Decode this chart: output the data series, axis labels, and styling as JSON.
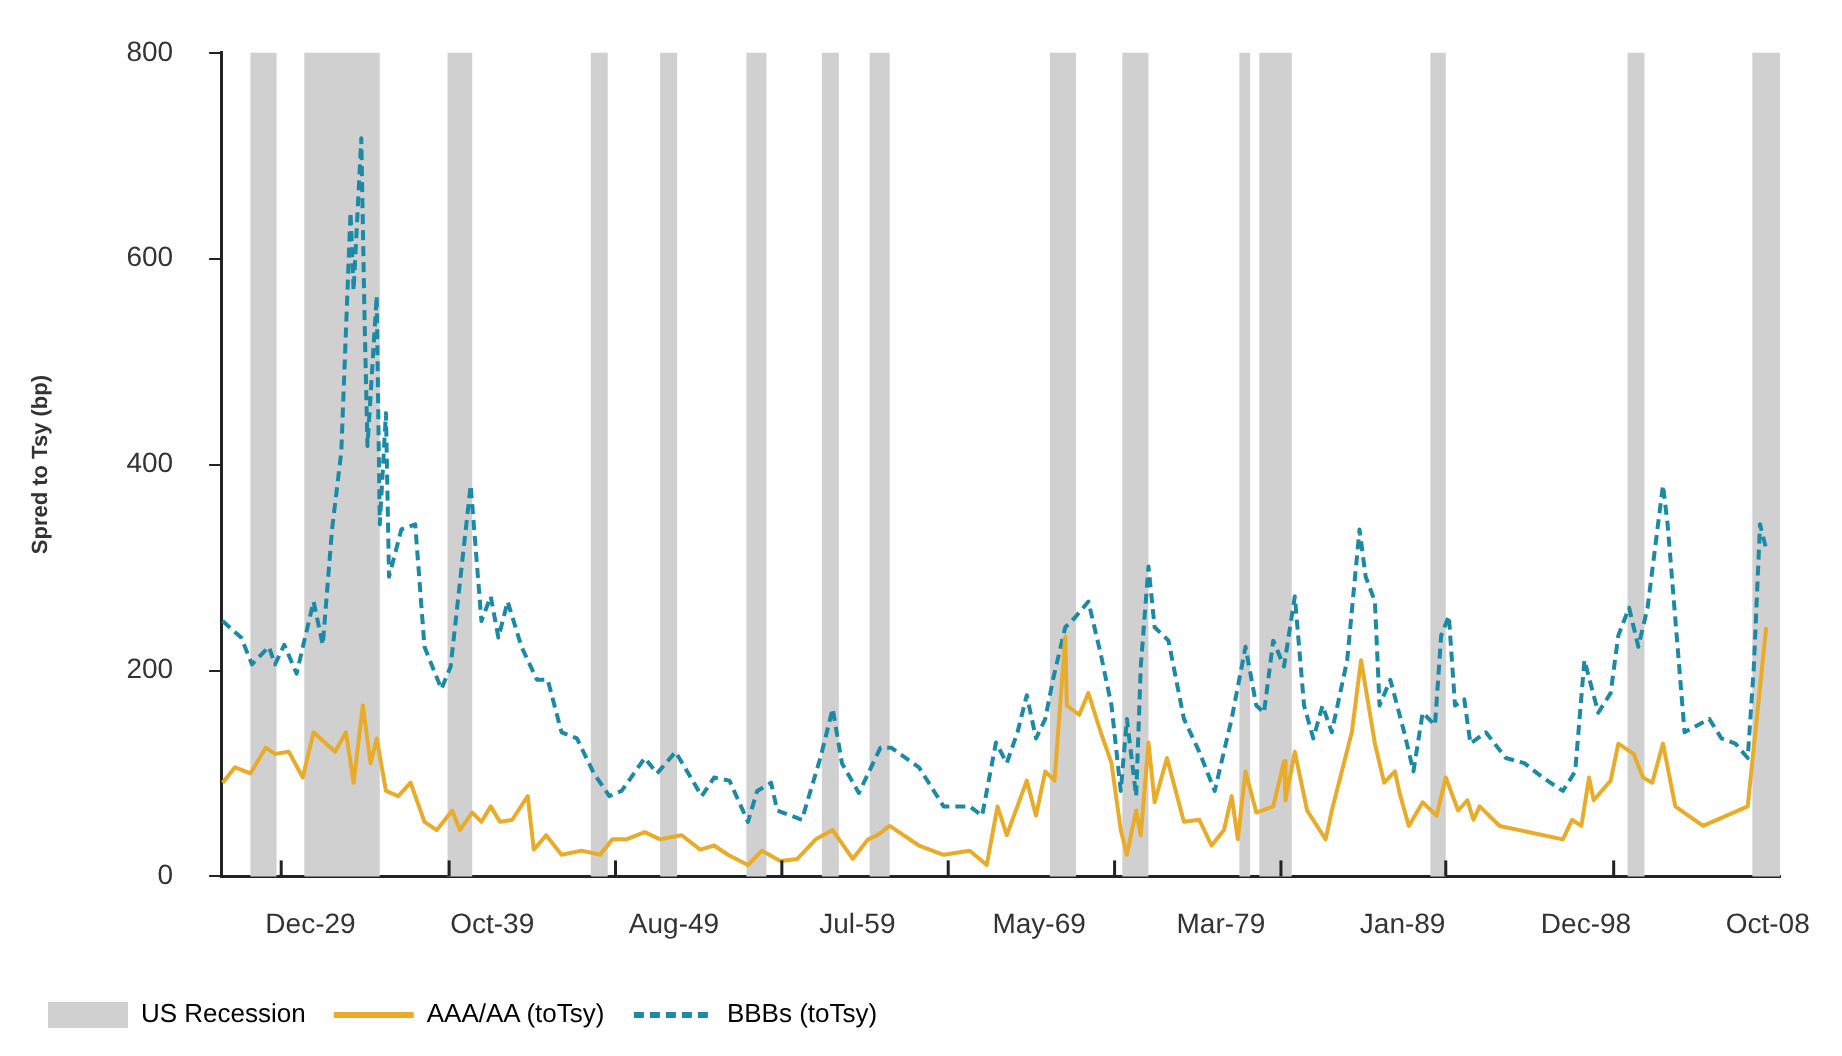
{
  "chart_data": {
    "type": "line",
    "ylabel": "Spred to Tsy (bp)",
    "xlim": [
      "1925-02",
      "2009-06"
    ],
    "ylim": [
      0,
      800
    ],
    "yticks": [
      0,
      200,
      400,
      600,
      800
    ],
    "xticks": [
      {
        "value": "1928-05",
        "label": null
      },
      {
        "value": "1929-12",
        "label": "Dec-29"
      },
      {
        "value": "1937-06",
        "label": null
      },
      {
        "value": "1939-10",
        "label": "Oct-39"
      },
      {
        "value": "1946-06",
        "label": null
      },
      {
        "value": "1949-08",
        "label": "Aug-49"
      },
      {
        "value": "1955-06",
        "label": null
      },
      {
        "value": "1959-07",
        "label": "Jul-59"
      },
      {
        "value": "1964-06",
        "label": null
      },
      {
        "value": "1969-05",
        "label": "May-69"
      },
      {
        "value": "1973-06",
        "label": null
      },
      {
        "value": "1979-03",
        "label": "Mar-79"
      },
      {
        "value": "1982-06",
        "label": null
      },
      {
        "value": "1989-01",
        "label": "Jan-89"
      },
      {
        "value": "1991-05",
        "label": null
      },
      {
        "value": "1998-12",
        "label": "Dec-98"
      },
      {
        "value": "2000-06",
        "label": null
      },
      {
        "value": "2008-10",
        "label": "Oct-08"
      }
    ],
    "grid": false,
    "legend": "bottom",
    "marker": "none",
    "bands": [
      {
        "axis": "x",
        "from": "1926-09",
        "to": "1928-02",
        "label": "US Recession",
        "color": "#d0d0d0"
      },
      {
        "axis": "x",
        "from": "1929-08",
        "to": "1933-09",
        "color": "#d0d0d0"
      },
      {
        "axis": "x",
        "from": "1937-05",
        "to": "1938-09",
        "color": "#d0d0d0"
      },
      {
        "axis": "x",
        "from": "1945-02",
        "to": "1946-01",
        "color": "#d0d0d0"
      },
      {
        "axis": "x",
        "from": "1948-11",
        "to": "1949-10",
        "color": "#d0d0d0"
      },
      {
        "axis": "x",
        "from": "1953-07",
        "to": "1954-08",
        "color": "#d0d0d0"
      },
      {
        "axis": "x",
        "from": "1957-08",
        "to": "1958-07",
        "color": "#d0d0d0"
      },
      {
        "axis": "x",
        "from": "1960-03",
        "to": "1961-04",
        "color": "#d0d0d0"
      },
      {
        "axis": "x",
        "from": "1969-12",
        "to": "1971-05",
        "color": "#d0d0d0"
      },
      {
        "axis": "x",
        "from": "1973-11",
        "to": "1975-04",
        "color": "#d0d0d0"
      },
      {
        "axis": "x",
        "from": "1980-03",
        "to": "1980-10",
        "color": "#d0d0d0"
      },
      {
        "axis": "x",
        "from": "1981-04",
        "to": "1983-01",
        "color": "#d0d0d0"
      },
      {
        "axis": "x",
        "from": "1990-07",
        "to": "1991-05",
        "color": "#d0d0d0"
      },
      {
        "axis": "x",
        "from": "2001-03",
        "to": "2002-02",
        "color": "#d0d0d0"
      },
      {
        "axis": "x",
        "from": "2007-12",
        "to": "2009-06",
        "color": "#d0d0d0"
      }
    ],
    "series": [
      {
        "name": "AAA/AA (toTsy)",
        "color": "#e8ac2a",
        "line_style": "solid",
        "x": [
          "1925-03",
          "1925-11",
          "1926-09",
          "1927-07",
          "1928-01",
          "1928-10",
          "1929-07",
          "1930-02",
          "1931-04",
          "1931-11",
          "1932-04",
          "1932-10",
          "1933-03",
          "1933-07",
          "1934-01",
          "1934-09",
          "1935-05",
          "1936-02",
          "1936-10",
          "1937-08",
          "1938-01",
          "1938-09",
          "1939-03",
          "1939-09",
          "1940-03",
          "1940-11",
          "1941-09",
          "1942-01",
          "1942-09",
          "1943-07",
          "1944-08",
          "1945-08",
          "1946-04",
          "1947-01",
          "1948-01",
          "1948-11",
          "1950-01",
          "1951-01",
          "1951-10",
          "1952-07",
          "1953-08",
          "1954-05",
          "1955-05",
          "1956-04",
          "1957-04",
          "1958-03",
          "1959-04",
          "1960-02",
          "1960-08",
          "1961-04",
          "1962-11",
          "1964-03",
          "1965-08",
          "1966-07",
          "1967-02",
          "1967-08",
          "1968-09",
          "1969-03",
          "1969-09",
          "1970-03",
          "1970-10",
          "1970-11",
          "1971-07",
          "1972-01",
          "1972-09",
          "1973-04",
          "1973-10",
          "1974-02",
          "1974-08",
          "1974-11",
          "1975-04",
          "1975-08",
          "1976-04",
          "1977-03",
          "1978-01",
          "1978-09",
          "1979-05",
          "1979-10",
          "1980-02",
          "1980-07",
          "1981-02",
          "1982-01",
          "1982-08",
          "1982-09",
          "1983-03",
          "1983-11",
          "1984-11",
          "1985-03",
          "1986-04",
          "1986-10",
          "1987-07",
          "1988-01",
          "1988-08",
          "1988-11",
          "1989-05",
          "1990-02",
          "1990-11",
          "1991-05",
          "1992-01",
          "1992-07",
          "1992-11",
          "1993-03",
          "1994-04",
          "1997-09",
          "1998-03",
          "1998-09",
          "1999-02",
          "1999-05",
          "2000-04",
          "2000-09",
          "2001-07",
          "2002-01",
          "2002-07",
          "2003-02",
          "2003-10",
          "2005-04",
          "2007-09",
          "2008-09"
        ],
        "values": [
          91,
          106,
          100,
          125,
          119,
          121,
          96,
          140,
          121,
          140,
          91,
          166,
          110,
          134,
          83,
          78,
          91,
          53,
          45,
          64,
          45,
          62,
          53,
          68,
          53,
          55,
          78,
          26,
          40,
          21,
          25,
          21,
          36,
          36,
          43,
          36,
          40,
          26,
          30,
          21,
          11,
          25,
          15,
          17,
          36,
          45,
          17,
          36,
          40,
          49,
          30,
          21,
          25,
          11,
          68,
          40,
          93,
          59,
          102,
          93,
          233,
          166,
          157,
          178,
          140,
          110,
          45,
          21,
          64,
          40,
          130,
          72,
          115,
          53,
          55,
          30,
          45,
          78,
          36,
          102,
          62,
          68,
          112,
          74,
          121,
          64,
          36,
          64,
          140,
          210,
          129,
          91,
          102,
          81,
          49,
          72,
          59,
          96,
          64,
          74,
          55,
          68,
          49,
          36,
          55,
          49,
          96,
          74,
          93,
          129,
          119,
          96,
          91,
          129,
          68,
          49,
          68,
          242
        ]
      },
      {
        "name": "BBBs (toTsy)",
        "color": "#1a8aa6",
        "line_style": "dashed",
        "x": [
          "1925-03",
          "1926-03",
          "1926-10",
          "1927-09",
          "1928-01",
          "1928-07",
          "1929-03",
          "1930-02",
          "1930-08",
          "1931-02",
          "1931-08",
          "1932-02",
          "1932-04",
          "1932-09",
          "1932-11",
          "1933-01",
          "1933-07",
          "1933-09",
          "1934-01",
          "1934-03",
          "1934-11",
          "1935-08",
          "1936-02",
          "1937-01",
          "1937-07",
          "1938-08",
          "1939-03",
          "1939-09",
          "1940-02",
          "1940-08",
          "1941-05",
          "1942-03",
          "1942-10",
          "1943-07",
          "1944-05",
          "1945-04",
          "1946-02",
          "1946-10",
          "1948-01",
          "1948-09",
          "1949-09",
          "1951-02",
          "1951-10",
          "1952-08",
          "1953-08",
          "1954-02",
          "1954-11",
          "1955-03",
          "1956-07",
          "1957-07",
          "1958-03",
          "1958-09",
          "1959-08",
          "1960-10",
          "1961-05",
          "1962-11",
          "1964-03",
          "1965-08",
          "1966-04",
          "1967-01",
          "1967-08",
          "1968-03",
          "1968-09",
          "1969-03",
          "1969-09",
          "1970-02",
          "1970-10",
          "1971-04",
          "1972-01",
          "1972-09",
          "1973-04",
          "1973-10",
          "1974-02",
          "1974-08",
          "1974-11",
          "1975-04",
          "1975-08",
          "1976-05",
          "1977-03",
          "1978-01",
          "1978-11",
          "1979-10",
          "1980-07",
          "1981-02",
          "1981-07",
          "1982-01",
          "1982-08",
          "1983-03",
          "1983-09",
          "1984-03",
          "1984-09",
          "1985-03",
          "1986-01",
          "1986-09",
          "1987-01",
          "1987-07",
          "1987-10",
          "1988-05",
          "1989-02",
          "1989-08",
          "1990-02",
          "1990-10",
          "1991-02",
          "1991-07",
          "1991-11",
          "1992-05",
          "1992-09",
          "1993-07",
          "1994-08",
          "1995-08",
          "1996-08",
          "1997-09",
          "1998-05",
          "1998-11",
          "1999-08",
          "2000-04",
          "2000-09",
          "2001-04",
          "2001-10",
          "2002-04",
          "2003-02",
          "2003-05",
          "2004-04",
          "2005-08",
          "2006-04",
          "2007-01",
          "2007-09",
          "2008-01",
          "2008-05",
          "2008-09"
        ],
        "values": [
          248,
          232,
          206,
          223,
          206,
          225,
          197,
          267,
          225,
          337,
          412,
          645,
          569,
          717,
          550,
          418,
          564,
          342,
          450,
          291,
          337,
          342,
          223,
          182,
          204,
          380,
          248,
          272,
          232,
          267,
          223,
          191,
          191,
          140,
          134,
          100,
          78,
          83,
          115,
          100,
          121,
          78,
          96,
          93,
          53,
          83,
          91,
          64,
          55,
          115,
          163,
          110,
          81,
          125,
          125,
          106,
          68,
          68,
          59,
          130,
          110,
          140,
          176,
          134,
          153,
          191,
          242,
          251,
          267,
          216,
          166,
          83,
          153,
          78,
          204,
          301,
          242,
          229,
          153,
          121,
          83,
          153,
          223,
          166,
          159,
          229,
          204,
          272,
          166,
          134,
          166,
          140,
          210,
          337,
          291,
          267,
          166,
          191,
          140,
          102,
          159,
          147,
          234,
          253,
          166,
          172,
          129,
          140,
          115,
          110,
          96,
          83,
          102,
          210,
          159,
          178,
          234,
          261,
          223,
          261,
          380,
          342,
          140,
          153,
          134,
          129,
          115,
          204,
          342,
          318
        ]
      }
    ]
  }
}
